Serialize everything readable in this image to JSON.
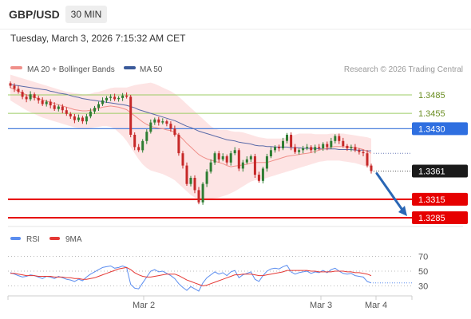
{
  "header": {
    "symbol": "GBP/USD",
    "timeframe": "30 MIN",
    "datetime": "Tuesday, March 3, 2026 7:15:32 AM CET"
  },
  "price_legend": [
    {
      "label": "MA 20 + Bollinger Bands",
      "color": "#f0908a"
    },
    {
      "label": "MA 50",
      "color": "#3a5a9a"
    }
  ],
  "copyright": "Research © 2026 Trading Central",
  "colors": {
    "up_candle": "#2e7d32",
    "down_candle": "#c62828",
    "bollinger_fill": "#fde1e1",
    "ma20": "#f0908a",
    "ma50": "#5a6aa8",
    "resistance": "#9ccc65",
    "pivot": "#4a7fdc",
    "support": "#e60000",
    "rsi": "#5b8def",
    "rsi_ma": "#e53935"
  },
  "chart_data": [
    {
      "type": "candlestick",
      "symbol": "GBP/USD",
      "interval": "30 MIN",
      "ylim": [
        1.326,
        1.351
      ],
      "current_price": 1.3361,
      "levels": [
        {
          "value": 1.3485,
          "label": "1.3485",
          "kind": "resistance"
        },
        {
          "value": 1.3455,
          "label": "1.3455",
          "kind": "resistance"
        },
        {
          "value": 1.343,
          "label": "1.3430",
          "kind": "pivot"
        },
        {
          "value": 1.3315,
          "label": "1.3315",
          "kind": "support"
        },
        {
          "value": 1.3285,
          "label": "1.3285",
          "kind": "support"
        }
      ],
      "forecast": {
        "from": 1.3361,
        "to": 1.3285,
        "direction": "down"
      },
      "x_tick_labels": [
        "Mar 2",
        "Mar 3",
        "Mar 4"
      ],
      "close": [
        1.35,
        1.3495,
        1.349,
        1.3482,
        1.3478,
        1.3486,
        1.348,
        1.3476,
        1.347,
        1.3474,
        1.3468,
        1.3462,
        1.3466,
        1.346,
        1.3454,
        1.345,
        1.3444,
        1.3448,
        1.3442,
        1.345,
        1.3458,
        1.3464,
        1.347,
        1.3476,
        1.348,
        1.3482,
        1.3478,
        1.348,
        1.3484,
        1.3482,
        1.342,
        1.34,
        1.3395,
        1.341,
        1.3425,
        1.344,
        1.3445,
        1.344,
        1.3442,
        1.3438,
        1.343,
        1.342,
        1.339,
        1.337,
        1.334,
        1.335,
        1.333,
        1.331,
        1.334,
        1.336,
        1.3375,
        1.339,
        1.338,
        1.3385,
        1.3375,
        1.339,
        1.3395,
        1.3365,
        1.3375,
        1.338,
        1.3385,
        1.3355,
        1.3345,
        1.3365,
        1.3385,
        1.3395,
        1.34,
        1.3398,
        1.341,
        1.342,
        1.34,
        1.3392,
        1.3395,
        1.3398,
        1.34,
        1.3395,
        1.34,
        1.3398,
        1.3405,
        1.34,
        1.341,
        1.3418,
        1.341,
        1.3402,
        1.3398,
        1.34,
        1.3395,
        1.3392,
        1.339,
        1.337,
        1.3361
      ],
      "ma20": [
        1.3497,
        1.3494,
        1.3491,
        1.3488,
        1.3485,
        1.3483,
        1.3481,
        1.3479,
        1.3477,
        1.3475,
        1.3473,
        1.3471,
        1.3469,
        1.3467,
        1.3465,
        1.3463,
        1.3461,
        1.346,
        1.3459,
        1.3459,
        1.346,
        1.3461,
        1.3463,
        1.3465,
        1.3466,
        1.3467,
        1.3466,
        1.3465,
        1.3463,
        1.3461,
        1.3456,
        1.3451,
        1.3446,
        1.3441,
        1.3437,
        1.3434,
        1.3432,
        1.3431,
        1.343,
        1.3428,
        1.3427,
        1.3424,
        1.3419,
        1.3413,
        1.3406,
        1.34,
        1.3394,
        1.3388,
        1.3384,
        1.3381,
        1.3379,
        1.3377,
        1.3375,
        1.3373,
        1.337,
        1.3368,
        1.3369,
        1.337,
        1.3371,
        1.3372,
        1.3374,
        1.3375,
        1.3375,
        1.3375,
        1.3375,
        1.3377,
        1.3379,
        1.3381,
        1.3383,
        1.3385,
        1.3386,
        1.3387,
        1.3388,
        1.3389,
        1.339,
        1.3391,
        1.3393,
        1.3395,
        1.3397,
        1.3398,
        1.34,
        1.3401,
        1.3401,
        1.3401,
        1.34,
        1.34,
        1.3399,
        1.3398,
        1.3396,
        1.3393,
        1.339
      ],
      "ma50": [
        1.3502,
        1.3501,
        1.35,
        1.3499,
        1.3498,
        1.3497,
        1.3496,
        1.3495,
        1.3494,
        1.3493,
        1.3491,
        1.349,
        1.3488,
        1.3487,
        1.3486,
        1.3484,
        1.3482,
        1.3481,
        1.3479,
        1.3478,
        1.3477,
        1.3476,
        1.3475,
        1.3474,
        1.3473,
        1.3472,
        1.3471,
        1.347,
        1.3469,
        1.3468,
        1.3466,
        1.3464,
        1.3461,
        1.3459,
        1.3457,
        1.3455,
        1.3453,
        1.3451,
        1.3449,
        1.3447,
        1.3445,
        1.3443,
        1.344,
        1.3437,
        1.3434,
        1.3432,
        1.3429,
        1.3426,
        1.3424,
        1.3422,
        1.342,
        1.3418,
        1.3416,
        1.3414,
        1.3412,
        1.3411,
        1.341,
        1.3408,
        1.3407,
        1.3406,
        1.3405,
        1.3403,
        1.3402,
        1.3402,
        1.3401,
        1.3401,
        1.34,
        1.34,
        1.34,
        1.34,
        1.3399,
        1.3399,
        1.3399,
        1.3398,
        1.3398,
        1.3398,
        1.3398,
        1.3397,
        1.3397,
        1.3397,
        1.3397,
        1.3397,
        1.3396,
        1.3396,
        1.3396,
        1.3396,
        1.3395,
        1.3395,
        1.3395,
        1.3394,
        1.3394
      ],
      "bb_upper": [
        1.3518,
        1.3516,
        1.3514,
        1.3512,
        1.351,
        1.3508,
        1.3506,
        1.3504,
        1.3502,
        1.35,
        1.3498,
        1.3496,
        1.3494,
        1.3492,
        1.349,
        1.3489,
        1.3488,
        1.3487,
        1.3486,
        1.3486,
        1.3487,
        1.3489,
        1.349,
        1.3492,
        1.3494,
        1.3496,
        1.3497,
        1.3497,
        1.3497,
        1.3497,
        1.3499,
        1.3501,
        1.3502,
        1.3503,
        1.3504,
        1.3505,
        1.3503,
        1.35,
        1.3497,
        1.3494,
        1.3491,
        1.3487,
        1.3482,
        1.3476,
        1.347,
        1.3464,
        1.3458,
        1.3452,
        1.3446,
        1.344,
        1.3434,
        1.343,
        1.3428,
        1.3428,
        1.3428,
        1.3426,
        1.3425,
        1.3425,
        1.3424,
        1.3422,
        1.342,
        1.3418,
        1.3416,
        1.3415,
        1.3414,
        1.3414,
        1.3414,
        1.3414,
        1.3414,
        1.3416,
        1.3418,
        1.342,
        1.3422,
        1.3422,
        1.3422,
        1.3422,
        1.3421,
        1.3421,
        1.3421,
        1.3421,
        1.3422,
        1.3422,
        1.3422,
        1.3422,
        1.3421,
        1.342,
        1.3419,
        1.3418,
        1.3417,
        1.3416,
        1.3414
      ],
      "bb_lower": [
        1.3476,
        1.3472,
        1.3468,
        1.3464,
        1.346,
        1.3457,
        1.3454,
        1.3451,
        1.3448,
        1.3446,
        1.3444,
        1.3442,
        1.344,
        1.3438,
        1.3436,
        1.3434,
        1.3432,
        1.3431,
        1.343,
        1.343,
        1.3431,
        1.3432,
        1.3433,
        1.3434,
        1.3434,
        1.3433,
        1.343,
        1.3424,
        1.3418,
        1.341,
        1.34,
        1.339,
        1.338,
        1.3372,
        1.3366,
        1.3362,
        1.336,
        1.3358,
        1.3356,
        1.3353,
        1.335,
        1.3346,
        1.334,
        1.3334,
        1.3328,
        1.3322,
        1.3318,
        1.3316,
        1.3316,
        1.3316,
        1.3316,
        1.3317,
        1.3318,
        1.332,
        1.3322,
        1.3325,
        1.3328,
        1.3332,
        1.3336,
        1.334,
        1.3344,
        1.3346,
        1.3347,
        1.3348,
        1.335,
        1.3352,
        1.3354,
        1.3356,
        1.3358,
        1.336,
        1.3362,
        1.3364,
        1.3366,
        1.3368,
        1.337,
        1.3372,
        1.3374,
        1.3376,
        1.3377,
        1.3378,
        1.3378,
        1.3378,
        1.3378,
        1.3377,
        1.3376,
        1.3375,
        1.3374,
        1.3372,
        1.337,
        1.3368,
        1.3366
      ]
    },
    {
      "type": "line",
      "legend": [
        "RSI",
        "9MA"
      ],
      "ylim": [
        20,
        80
      ],
      "yticks": [
        70,
        50,
        30
      ],
      "series": [
        {
          "name": "RSI",
          "values": [
            48,
            46,
            44,
            42,
            43,
            45,
            44,
            42,
            40,
            43,
            42,
            40,
            43,
            41,
            39,
            38,
            36,
            39,
            37,
            42,
            46,
            49,
            52,
            55,
            56,
            57,
            54,
            55,
            57,
            55,
            32,
            27,
            26,
            34,
            42,
            50,
            52,
            49,
            50,
            47,
            44,
            40,
            33,
            28,
            24,
            29,
            26,
            23,
            34,
            41,
            45,
            49,
            46,
            48,
            44,
            49,
            51,
            41,
            45,
            47,
            49,
            39,
            36,
            44,
            50,
            53,
            54,
            53,
            56,
            58,
            49,
            46,
            48,
            49,
            50,
            47,
            49,
            48,
            51,
            48,
            52,
            54,
            50,
            47,
            46,
            47,
            44,
            43,
            42,
            36,
            34
          ]
        },
        {
          "name": "9MA",
          "values": [
            47,
            47,
            46,
            45,
            44,
            44,
            44,
            43,
            43,
            43,
            43,
            42,
            42,
            42,
            41,
            41,
            40,
            40,
            39,
            39,
            40,
            41,
            43,
            45,
            47,
            49,
            51,
            53,
            54,
            55,
            52,
            48,
            45,
            43,
            42,
            42,
            43,
            44,
            45,
            46,
            46,
            46,
            44,
            41,
            38,
            36,
            34,
            32,
            30,
            31,
            33,
            35,
            37,
            39,
            41,
            43,
            45,
            45,
            46,
            46,
            46,
            45,
            44,
            44,
            45,
            46,
            47,
            48,
            49,
            51,
            51,
            51,
            51,
            51,
            51,
            50,
            50,
            49,
            49,
            49,
            49,
            50,
            50,
            50,
            49,
            49,
            48,
            48,
            47,
            46,
            44
          ]
        }
      ]
    }
  ]
}
